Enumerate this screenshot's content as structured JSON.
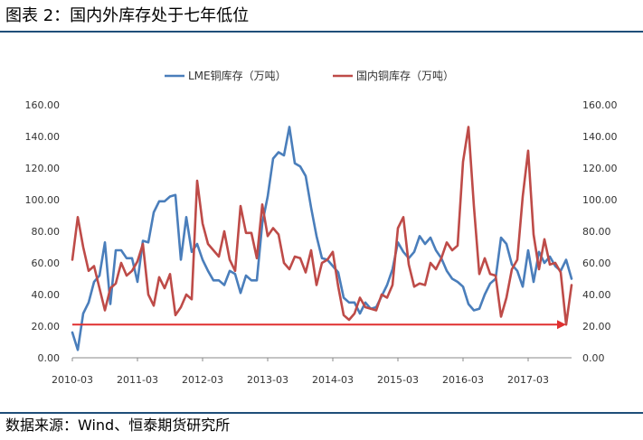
{
  "figure": {
    "title": "图表 2：国内外库存处于七年低位",
    "source": "数据来源：Wind、恒泰期货研究所"
  },
  "colors": {
    "lme": "#4a7ebb",
    "domestic": "#be4b48",
    "arrow": "#e03030",
    "rule": "#1f4e79",
    "axis": "#888888"
  },
  "chart_data": {
    "type": "line",
    "legend_position": "top-center",
    "y_left": {
      "ticks": [
        "0.00",
        "20.00",
        "40.00",
        "60.00",
        "80.00",
        "100.00",
        "120.00",
        "140.00",
        "160.00"
      ],
      "range": [
        0,
        160
      ]
    },
    "y_right": {
      "ticks": [
        "0.00",
        "20.00",
        "40.00",
        "60.00",
        "80.00",
        "100.00",
        "120.00",
        "140.00",
        "160.00"
      ],
      "range": [
        0,
        160
      ]
    },
    "x_tick_labels": [
      "2010-03",
      "2011-03",
      "2012-03",
      "2013-03",
      "2014-03",
      "2015-03",
      "2016-03",
      "2017-03"
    ],
    "x_range": [
      "2010-03",
      "2017-11"
    ],
    "grid": "none",
    "annotation": {
      "type": "horizontal-arrow",
      "y": 21,
      "from": "2010-03",
      "to": "2017-10"
    },
    "series": [
      {
        "name": "LME铜库存（万吨）",
        "axis": "left",
        "x": [
          "2010-03",
          "2010-04",
          "2010-05",
          "2010-06",
          "2010-07",
          "2010-08",
          "2010-09",
          "2010-10",
          "2010-11",
          "2010-12",
          "2011-01",
          "2011-02",
          "2011-03",
          "2011-04",
          "2011-05",
          "2011-06",
          "2011-07",
          "2011-08",
          "2011-09",
          "2011-10",
          "2011-11",
          "2011-12",
          "2012-01",
          "2012-02",
          "2012-03",
          "2012-04",
          "2012-05",
          "2012-06",
          "2012-07",
          "2012-08",
          "2012-09",
          "2012-10",
          "2012-11",
          "2012-12",
          "2013-01",
          "2013-02",
          "2013-03",
          "2013-04",
          "2013-05",
          "2013-06",
          "2013-07",
          "2013-08",
          "2013-09",
          "2013-10",
          "2013-11",
          "2013-12",
          "2014-01",
          "2014-02",
          "2014-03",
          "2014-04",
          "2014-05",
          "2014-06",
          "2014-07",
          "2014-08",
          "2014-09",
          "2014-10",
          "2014-11",
          "2014-12",
          "2015-01",
          "2015-02",
          "2015-03",
          "2015-04",
          "2015-05",
          "2015-06",
          "2015-07",
          "2015-08",
          "2015-09",
          "2015-10",
          "2015-11",
          "2015-12",
          "2016-01",
          "2016-02",
          "2016-03",
          "2016-04",
          "2016-05",
          "2016-06",
          "2016-07",
          "2016-08",
          "2016-09",
          "2016-10",
          "2016-11",
          "2016-12",
          "2017-01",
          "2017-02",
          "2017-03",
          "2017-04",
          "2017-05",
          "2017-06",
          "2017-07",
          "2017-08",
          "2017-09",
          "2017-10",
          "2017-11"
        ],
        "values": [
          16,
          5,
          28,
          35,
          48,
          52,
          73,
          34,
          68,
          68,
          63,
          63,
          48,
          74,
          73,
          92,
          99,
          99,
          102,
          103,
          62,
          89,
          67,
          72,
          62,
          55,
          49,
          49,
          46,
          55,
          53,
          41,
          52,
          49,
          49,
          85,
          102,
          126,
          130,
          128,
          146,
          123,
          121,
          115,
          95,
          77,
          63,
          62,
          58,
          54,
          38,
          35,
          35,
          28,
          35,
          31,
          32,
          39,
          46,
          56,
          73,
          67,
          63,
          67,
          77,
          72,
          76,
          68,
          63,
          55,
          50,
          48,
          45,
          34,
          30,
          31,
          40,
          47,
          50,
          76,
          72,
          59,
          55,
          45,
          68,
          48,
          67,
          60,
          64,
          58,
          55,
          62,
          50
        ]
      },
      {
        "name": "国内铜库存（万吨）",
        "axis": "right",
        "x": [
          "2010-03",
          "2010-04",
          "2010-05",
          "2010-06",
          "2010-07",
          "2010-08",
          "2010-09",
          "2010-10",
          "2010-11",
          "2010-12",
          "2011-01",
          "2011-02",
          "2011-03",
          "2011-04",
          "2011-05",
          "2011-06",
          "2011-07",
          "2011-08",
          "2011-09",
          "2011-10",
          "2011-11",
          "2011-12",
          "2012-01",
          "2012-02",
          "2012-03",
          "2012-04",
          "2012-05",
          "2012-06",
          "2012-07",
          "2012-08",
          "2012-09",
          "2012-10",
          "2012-11",
          "2012-12",
          "2013-01",
          "2013-02",
          "2013-03",
          "2013-04",
          "2013-05",
          "2013-06",
          "2013-07",
          "2013-08",
          "2013-09",
          "2013-10",
          "2013-11",
          "2013-12",
          "2014-01",
          "2014-02",
          "2014-03",
          "2014-04",
          "2014-05",
          "2014-06",
          "2014-07",
          "2014-08",
          "2014-09",
          "2014-10",
          "2014-11",
          "2014-12",
          "2015-01",
          "2015-02",
          "2015-03",
          "2015-04",
          "2015-05",
          "2015-06",
          "2015-07",
          "2015-08",
          "2015-09",
          "2015-10",
          "2015-11",
          "2015-12",
          "2016-01",
          "2016-02",
          "2016-03",
          "2016-04",
          "2016-05",
          "2016-06",
          "2016-07",
          "2016-08",
          "2016-09",
          "2016-10",
          "2016-11",
          "2016-12",
          "2017-01",
          "2017-02",
          "2017-03",
          "2017-04",
          "2017-05",
          "2017-06",
          "2017-07",
          "2017-08",
          "2017-09",
          "2017-10",
          "2017-11"
        ],
        "values": [
          62,
          89,
          70,
          55,
          58,
          44,
          30,
          44,
          47,
          60,
          52,
          55,
          61,
          72,
          40,
          33,
          51,
          44,
          53,
          27,
          32,
          40,
          37,
          112,
          85,
          72,
          68,
          64,
          80,
          62,
          55,
          96,
          79,
          79,
          63,
          97,
          77,
          82,
          78,
          60,
          56,
          64,
          63,
          54,
          68,
          46,
          60,
          62,
          67,
          45,
          27,
          24,
          28,
          38,
          32,
          31,
          30,
          40,
          38,
          46,
          82,
          89,
          59,
          45,
          47,
          46,
          60,
          56,
          63,
          73,
          68,
          71,
          124,
          146,
          96,
          53,
          63,
          53,
          52,
          26,
          38,
          56,
          62,
          102,
          131,
          78,
          56,
          75,
          59,
          60,
          54,
          21,
          46
        ]
      }
    ]
  }
}
